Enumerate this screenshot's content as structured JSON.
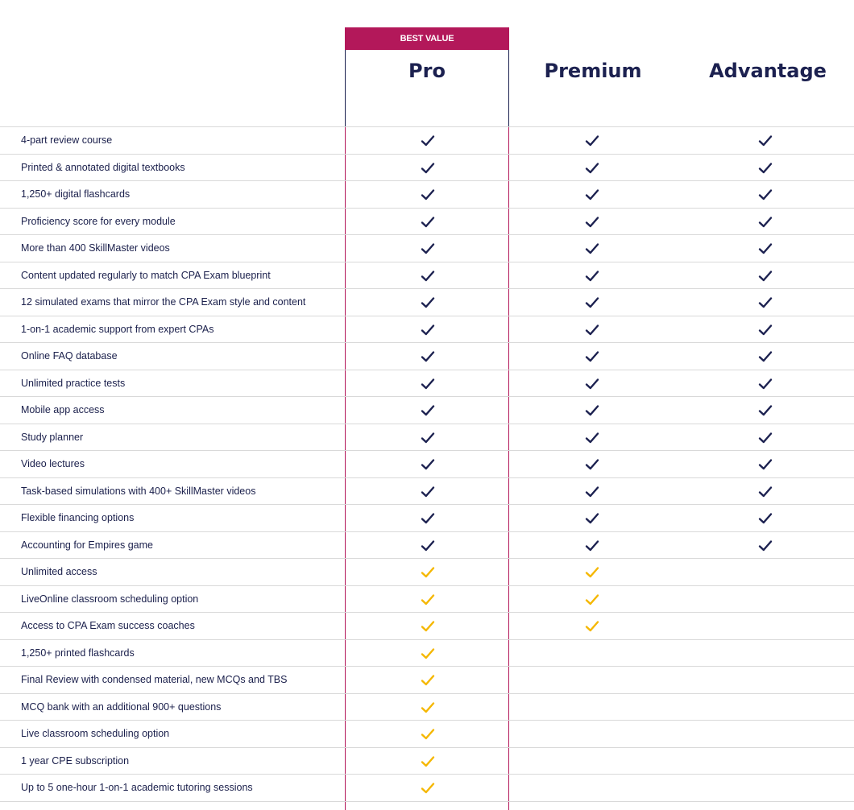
{
  "header": {
    "badge": "BEST VALUE",
    "plans": [
      "Pro",
      "Premium",
      "Advantage"
    ]
  },
  "colors": {
    "accent": "#b3185a",
    "navy": "#1c2150",
    "check_included": "#1c2150",
    "check_exclusive": "#f5b700",
    "divider": "#d9d9d9"
  },
  "features": [
    {
      "label": "4-part review course",
      "pro": "navy",
      "premium": "navy",
      "advantage": "navy"
    },
    {
      "label": "Printed & annotated digital textbooks",
      "pro": "navy",
      "premium": "navy",
      "advantage": "navy"
    },
    {
      "label": "1,250+ digital flashcards",
      "pro": "navy",
      "premium": "navy",
      "advantage": "navy"
    },
    {
      "label": "Proficiency score for every module",
      "pro": "navy",
      "premium": "navy",
      "advantage": "navy"
    },
    {
      "label": "More than 400 SkillMaster videos",
      "pro": "navy",
      "premium": "navy",
      "advantage": "navy"
    },
    {
      "label": "Content updated regularly to match CPA Exam blueprint",
      "pro": "navy",
      "premium": "navy",
      "advantage": "navy"
    },
    {
      "label": "12 simulated exams that mirror the CPA Exam style and content",
      "pro": "navy",
      "premium": "navy",
      "advantage": "navy"
    },
    {
      "label": "1-on-1 academic support from expert CPAs",
      "pro": "navy",
      "premium": "navy",
      "advantage": "navy"
    },
    {
      "label": "Online FAQ database",
      "pro": "navy",
      "premium": "navy",
      "advantage": "navy"
    },
    {
      "label": "Unlimited practice tests",
      "pro": "navy",
      "premium": "navy",
      "advantage": "navy"
    },
    {
      "label": "Mobile app access",
      "pro": "navy",
      "premium": "navy",
      "advantage": "navy"
    },
    {
      "label": "Study planner",
      "pro": "navy",
      "premium": "navy",
      "advantage": "navy"
    },
    {
      "label": "Video lectures",
      "pro": "navy",
      "premium": "navy",
      "advantage": "navy"
    },
    {
      "label": "Task-based simulations with 400+ SkillMaster videos",
      "pro": "navy",
      "premium": "navy",
      "advantage": "navy"
    },
    {
      "label": "Flexible financing options",
      "pro": "navy",
      "premium": "navy",
      "advantage": "navy"
    },
    {
      "label": "Accounting for Empires game",
      "pro": "navy",
      "premium": "navy",
      "advantage": "navy"
    },
    {
      "label": "Unlimited access",
      "pro": "gold",
      "premium": "gold",
      "advantage": "none"
    },
    {
      "label": "LiveOnline classroom scheduling option",
      "pro": "gold",
      "premium": "gold",
      "advantage": "none"
    },
    {
      "label": "Access to CPA Exam success coaches",
      "pro": "gold",
      "premium": "gold",
      "advantage": "none"
    },
    {
      "label": "1,250+ printed flashcards",
      "pro": "gold",
      "premium": "none",
      "advantage": "none"
    },
    {
      "label": "Final Review with condensed material, new MCQs and TBS",
      "pro": "gold",
      "premium": "none",
      "advantage": "none"
    },
    {
      "label": "MCQ bank with an additional 900+ questions",
      "pro": "gold",
      "premium": "none",
      "advantage": "none"
    },
    {
      "label": "Live classroom scheduling option",
      "pro": "gold",
      "premium": "none",
      "advantage": "none"
    },
    {
      "label": "1 year CPE subscription",
      "pro": "gold",
      "premium": "none",
      "advantage": "none"
    },
    {
      "label": "Up to 5 one-hour 1-on-1 academic tutoring sessions",
      "pro": "gold",
      "premium": "none",
      "advantage": "none"
    }
  ]
}
